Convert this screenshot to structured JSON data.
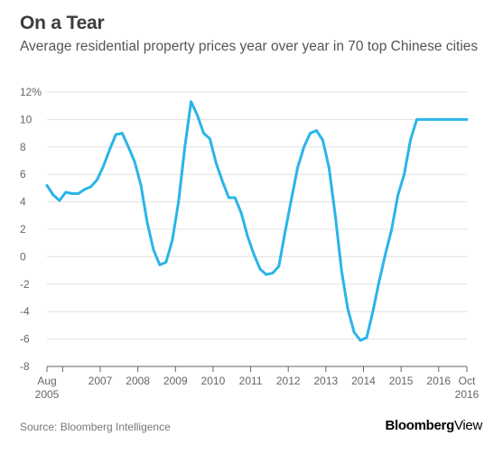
{
  "header": {
    "title": "On a Tear",
    "subtitle": "Average residential property prices year over year in 70 top Chinese cities"
  },
  "footer": {
    "source": "Source: Bloomberg Intelligence",
    "brand_bold": "Bloomberg",
    "brand_light": "View"
  },
  "colors": {
    "line": "#29b5e8",
    "grid": "#e0e0e0",
    "axis": "#666666",
    "text": "#666666"
  },
  "chart_data": {
    "type": "line",
    "ylim": [
      -8,
      12
    ],
    "yticks": [
      -8,
      -6,
      -4,
      -2,
      0,
      2,
      4,
      6,
      8,
      10,
      12
    ],
    "ytick_labels": [
      "-8",
      "-6",
      "-4",
      "-2",
      "0",
      "2",
      "4",
      "6",
      "8",
      "10",
      "12%"
    ],
    "xlim": [
      "2005-08",
      "2016-10"
    ],
    "xticks": [
      {
        "x": "2005-08",
        "label": "Aug",
        "label2": "2005"
      },
      {
        "x": "2006-01",
        "label": ""
      },
      {
        "x": "2007-01",
        "label": "2007"
      },
      {
        "x": "2008-01",
        "label": "2008"
      },
      {
        "x": "2009-01",
        "label": "2009"
      },
      {
        "x": "2010-01",
        "label": "2010"
      },
      {
        "x": "2011-01",
        "label": "2011"
      },
      {
        "x": "2012-01",
        "label": "2012"
      },
      {
        "x": "2013-01",
        "label": "2013"
      },
      {
        "x": "2014-01",
        "label": "2014"
      },
      {
        "x": "2015-01",
        "label": "2015"
      },
      {
        "x": "2016-01",
        "label": "2016"
      },
      {
        "x": "2016-10",
        "label": "Oct",
        "label2": "2016"
      }
    ],
    "grid": "horizontal",
    "series": [
      {
        "x": [
          "2005-08",
          "2005-10",
          "2005-12",
          "2006-02",
          "2006-04",
          "2006-06",
          "2006-08",
          "2006-10",
          "2006-12",
          "2007-02",
          "2007-04",
          "2007-06",
          "2007-08",
          "2007-10",
          "2007-12",
          "2008-02",
          "2008-04",
          "2008-06",
          "2008-08",
          "2008-10",
          "2008-12",
          "2009-02",
          "2009-04",
          "2009-06",
          "2009-08",
          "2009-10",
          "2009-12",
          "2010-02",
          "2010-04",
          "2010-06",
          "2010-08",
          "2010-10",
          "2010-12",
          "2011-02",
          "2011-04",
          "2011-06",
          "2011-08",
          "2011-10",
          "2011-12",
          "2012-02",
          "2012-04",
          "2012-06",
          "2012-08",
          "2012-10",
          "2012-12",
          "2013-02",
          "2013-04",
          "2013-06",
          "2013-08",
          "2013-10",
          "2013-12",
          "2014-02",
          "2014-04",
          "2014-06",
          "2014-08",
          "2014-10",
          "2014-12",
          "2015-02",
          "2015-04",
          "2015-06",
          "2015-08",
          "2015-10",
          "2015-12",
          "2016-02",
          "2016-04",
          "2016-06",
          "2016-08",
          "2016-10"
        ],
        "values": [
          5.2,
          4.5,
          4.1,
          4.7,
          4.6,
          4.6,
          4.9,
          5.1,
          5.6,
          6.6,
          7.8,
          8.9,
          9.0,
          8.0,
          6.9,
          5.2,
          2.5,
          0.5,
          -0.6,
          -0.4,
          1.2,
          4.0,
          8.0,
          11.3,
          10.3,
          9.0,
          8.6,
          6.8,
          5.5,
          4.3,
          4.3,
          3.2,
          1.5,
          0.2,
          -0.9,
          -1.3,
          -1.2,
          -0.7,
          1.8,
          4.2,
          6.5,
          8.0,
          9.0,
          9.2,
          8.5,
          6.5,
          3.0,
          -1.0,
          -3.8,
          -5.5,
          -6.1,
          -5.9,
          -4.0,
          -1.8,
          0.2,
          2.0,
          4.5,
          6.0,
          8.5,
          10.0,
          10.0,
          10.0,
          10.0,
          10.0,
          10.0,
          10.0,
          10.0,
          10.0
        ]
      }
    ]
  }
}
